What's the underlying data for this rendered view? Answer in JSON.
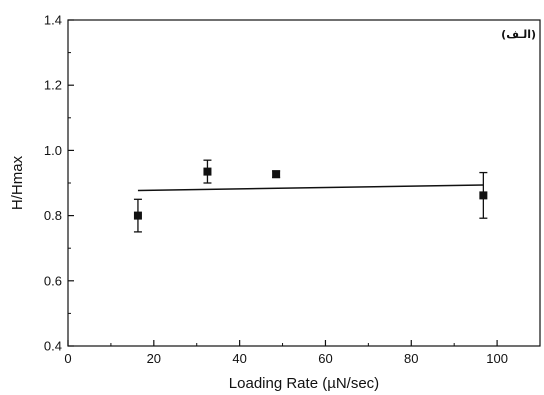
{
  "chart_data": {
    "type": "scatter",
    "title": "",
    "panel_label": "(الـف)",
    "xlabel": "Loading Rate (µN/sec)",
    "ylabel": "H/Hmax",
    "xlim": [
      0,
      110
    ],
    "ylim": [
      0.4,
      1.4
    ],
    "x_ticks": [
      0,
      20,
      40,
      60,
      80,
      100
    ],
    "y_ticks": [
      0.4,
      0.6,
      0.8,
      1.0,
      1.2,
      1.4
    ],
    "x_tick_labels": [
      "0",
      "20",
      "40",
      "60",
      "80",
      "100"
    ],
    "y_tick_labels": [
      "0.4",
      "0.6",
      "0.8",
      "1.0",
      "1.2",
      "1.4"
    ],
    "grid": false,
    "series": [
      {
        "points": [
          {
            "x": 16.3,
            "y": 0.8,
            "err": 0.05
          },
          {
            "x": 32.5,
            "y": 0.935,
            "err": 0.035
          },
          {
            "x": 48.5,
            "y": 0.927,
            "err": 0.01
          },
          {
            "x": 96.8,
            "y": 0.862,
            "err": 0.07
          }
        ]
      }
    ],
    "fit_line": {
      "x": [
        16.3,
        96.8
      ],
      "y": [
        0.877,
        0.894
      ]
    },
    "colors": {
      "marker": "#111111",
      "line": "#111111",
      "axis": "#111111"
    }
  }
}
